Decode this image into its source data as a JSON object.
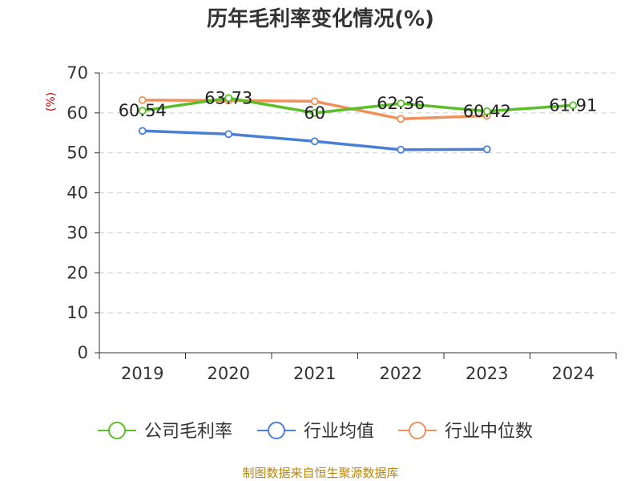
{
  "chart_data": {
    "type": "line",
    "title": "历年毛利率变化情况(%)",
    "ylabel": "(%)",
    "xlabel": "",
    "categories": [
      "2019",
      "2020",
      "2021",
      "2022",
      "2023",
      "2024"
    ],
    "ylim": [
      0,
      70
    ],
    "yticks": [
      0,
      10,
      20,
      30,
      40,
      50,
      60,
      70
    ],
    "grid": true,
    "legend_position": "bottom",
    "series": [
      {
        "name": "公司毛利率",
        "color": "#5cbf2a",
        "values": [
          60.54,
          63.73,
          60,
          62.36,
          60.42,
          61.91
        ],
        "labels": [
          "60.54",
          "63.73",
          "60",
          "62.36",
          "60.42",
          "61.91"
        ]
      },
      {
        "name": "行业均值",
        "color": "#4a7fd8",
        "values": [
          55.5,
          54.7,
          52.9,
          50.8,
          50.9,
          null
        ]
      },
      {
        "name": "行业中位数",
        "color": "#f0905a",
        "values": [
          63.2,
          63.1,
          62.9,
          58.5,
          59.3,
          null
        ]
      }
    ]
  },
  "footer": {
    "source": "制图数据来自恒生聚源数据库"
  }
}
